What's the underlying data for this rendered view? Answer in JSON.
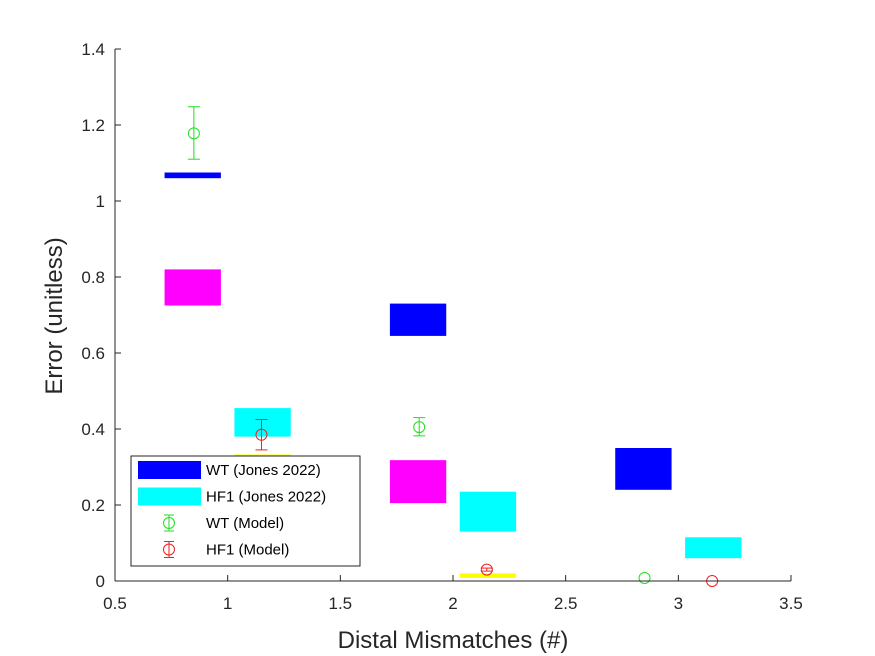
{
  "chart_data": {
    "type": "scatter",
    "xlabel": "Distal Mismatches (#)",
    "ylabel": "Error (unitless)",
    "xlim": [
      0.5,
      3.5
    ],
    "ylim": [
      0,
      1.4
    ],
    "xticks": [
      "0.5",
      "1",
      "1.5",
      "2",
      "2.5",
      "3",
      "3.5"
    ],
    "yticks": [
      "0",
      "0.2",
      "0.4",
      "0.6",
      "0.8",
      "1",
      "1.2",
      "1.4"
    ],
    "grid": false,
    "legend_position": "bottom-left",
    "range_boxes": [
      {
        "x_min": 0.72,
        "x_max": 0.97,
        "y_min": 1.06,
        "y_max": 1.075,
        "color": "#0000ff"
      },
      {
        "x_min": 0.72,
        "x_max": 0.97,
        "y_min": 0.725,
        "y_max": 0.82,
        "color": "#ff00ff"
      },
      {
        "x_min": 1.03,
        "x_max": 1.28,
        "y_min": 0.38,
        "y_max": 0.455,
        "color": "#00ffff"
      },
      {
        "x_min": 1.03,
        "x_max": 1.28,
        "y_min": 0.325,
        "y_max": 0.333,
        "color": "#ffff00"
      },
      {
        "x_min": 1.72,
        "x_max": 1.97,
        "y_min": 0.645,
        "y_max": 0.73,
        "color": "#0000ff"
      },
      {
        "x_min": 1.72,
        "x_max": 1.97,
        "y_min": 0.205,
        "y_max": 0.318,
        "color": "#ff00ff"
      },
      {
        "x_min": 2.03,
        "x_max": 2.28,
        "y_min": 0.13,
        "y_max": 0.235,
        "color": "#00ffff"
      },
      {
        "x_min": 2.03,
        "x_max": 2.28,
        "y_min": 0.008,
        "y_max": 0.02,
        "color": "#ffff00"
      },
      {
        "x_min": 2.72,
        "x_max": 2.97,
        "y_min": 0.24,
        "y_max": 0.35,
        "color": "#0000ff"
      },
      {
        "x_min": 3.03,
        "x_max": 3.28,
        "y_min": 0.06,
        "y_max": 0.115,
        "color": "#00ffff"
      }
    ],
    "series": [
      {
        "color": "#22dd22",
        "points": [
          {
            "x": 0.85,
            "y": 1.178,
            "err_low": 1.11,
            "err_high": 1.248
          },
          {
            "x": 1.85,
            "y": 0.405,
            "err_low": 0.382,
            "err_high": 0.43
          },
          {
            "x": 2.85,
            "y": 0.008,
            "err_low": 0.006,
            "err_high": 0.01
          }
        ]
      },
      {
        "color": "#ee2222",
        "points": [
          {
            "x": 1.15,
            "y": 0.385,
            "err_low": 0.345,
            "err_high": 0.425
          },
          {
            "x": 2.15,
            "y": 0.03,
            "err_low": 0.026,
            "err_high": 0.034
          },
          {
            "x": 3.15,
            "y": 0.0,
            "err_low": 0.0,
            "err_high": 0.0
          }
        ]
      }
    ],
    "legend": [
      {
        "label": "WT (Jones 2022)",
        "kind": "box",
        "color": "#0000ff"
      },
      {
        "label": "HF1 (Jones 2022)",
        "kind": "box",
        "color": "#00ffff"
      },
      {
        "label": "WT (Model)",
        "kind": "marker",
        "color": "#22dd22"
      },
      {
        "label": "HF1 (Model)",
        "kind": "marker",
        "color": "#ee2222"
      }
    ]
  }
}
